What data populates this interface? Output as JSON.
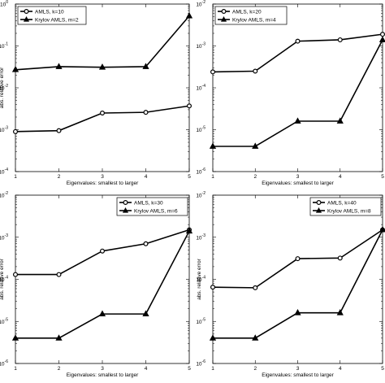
{
  "chart_data": [
    {
      "type": "line",
      "xlabel": "Eigenvalues: smallest to larger",
      "ylabel": "abs. relative error",
      "yscale": "log",
      "xlim": [
        1,
        5
      ],
      "ylim_exp": [
        -4,
        0
      ],
      "xticks": [
        "1",
        "2",
        "3",
        "4",
        "5"
      ],
      "yticks": [
        {
          "base": "10",
          "exp": "-4"
        },
        {
          "base": "10",
          "exp": "-3"
        },
        {
          "base": "10",
          "exp": "-2"
        },
        {
          "base": "10",
          "exp": "-1"
        },
        {
          "base": "10",
          "exp": "0"
        }
      ],
      "legend_position": "top-left",
      "x": [
        1,
        2,
        3,
        4,
        5
      ],
      "series": [
        {
          "name": "AMLS, k=10",
          "marker": "circle",
          "values": [
            0.0009,
            0.00095,
            0.0025,
            0.0026,
            0.0037
          ]
        },
        {
          "name": "Krylov AMLS, m=2",
          "marker": "triangle",
          "values": [
            0.027,
            0.032,
            0.031,
            0.032,
            0.52
          ]
        }
      ]
    },
    {
      "type": "line",
      "xlabel": "Eigenvalues: smallest to larger",
      "ylabel": "",
      "yscale": "log",
      "xlim": [
        1,
        5
      ],
      "ylim_exp": [
        -6,
        -2
      ],
      "xticks": [
        "1",
        "2",
        "3",
        "4",
        "5"
      ],
      "yticks": [
        {
          "base": "10",
          "exp": "-6"
        },
        {
          "base": "10",
          "exp": "-5"
        },
        {
          "base": "10",
          "exp": "-4"
        },
        {
          "base": "10",
          "exp": "-3"
        },
        {
          "base": "10",
          "exp": "-2"
        }
      ],
      "legend_position": "top-left",
      "x": [
        1,
        2,
        3,
        4,
        5
      ],
      "series": [
        {
          "name": "AMLS, k=20",
          "marker": "circle",
          "values": [
            0.00024,
            0.00025,
            0.0013,
            0.0014,
            0.0019
          ]
        },
        {
          "name": "Krylov AMLS, m=4",
          "marker": "triangle",
          "values": [
            4e-06,
            4e-06,
            1.6e-05,
            1.6e-05,
            0.0014
          ]
        }
      ]
    },
    {
      "type": "line",
      "xlabel": "Eigenvalues: smallest to larger",
      "ylabel": "abs. relative error",
      "yscale": "log",
      "xlim": [
        1,
        5
      ],
      "ylim_exp": [
        -6,
        -2
      ],
      "xticks": [
        "1",
        "2",
        "3",
        "4",
        "5"
      ],
      "yticks": [
        {
          "base": "10",
          "exp": "-6"
        },
        {
          "base": "10",
          "exp": "-5"
        },
        {
          "base": "10",
          "exp": "-4"
        },
        {
          "base": "10",
          "exp": "-3"
        },
        {
          "base": "10",
          "exp": "-2"
        }
      ],
      "legend_position": "top-right",
      "x": [
        1,
        2,
        3,
        4,
        5
      ],
      "series": [
        {
          "name": "AMLS, k=30",
          "marker": "circle",
          "values": [
            0.00013,
            0.00013,
            0.00047,
            0.0007,
            0.0015
          ]
        },
        {
          "name": "Krylov AMLS, m=6",
          "marker": "triangle",
          "values": [
            4e-06,
            4e-06,
            1.5e-05,
            1.5e-05,
            0.0014
          ]
        }
      ]
    },
    {
      "type": "line",
      "xlabel": "Eigenvalues: smallest to larger",
      "ylabel": "abs. relative error",
      "yscale": "log",
      "xlim": [
        1,
        5
      ],
      "ylim_exp": [
        -6,
        -2
      ],
      "xticks": [
        "1",
        "2",
        "3",
        "4",
        "5"
      ],
      "yticks": [
        {
          "base": "10",
          "exp": "-6"
        },
        {
          "base": "10",
          "exp": "-5"
        },
        {
          "base": "10",
          "exp": "-4"
        },
        {
          "base": "10",
          "exp": "-3"
        },
        {
          "base": "10",
          "exp": "-2"
        }
      ],
      "legend_position": "top-right",
      "x": [
        1,
        2,
        3,
        4,
        5
      ],
      "series": [
        {
          "name": "AMLS, k=40",
          "marker": "circle",
          "values": [
            6.5e-05,
            6.3e-05,
            0.00031,
            0.00032,
            0.0015
          ]
        },
        {
          "name": "Krylov AMLS, m=8",
          "marker": "triangle",
          "values": [
            4e-06,
            4e-06,
            1.6e-05,
            1.6e-05,
            0.0015
          ]
        }
      ]
    }
  ]
}
